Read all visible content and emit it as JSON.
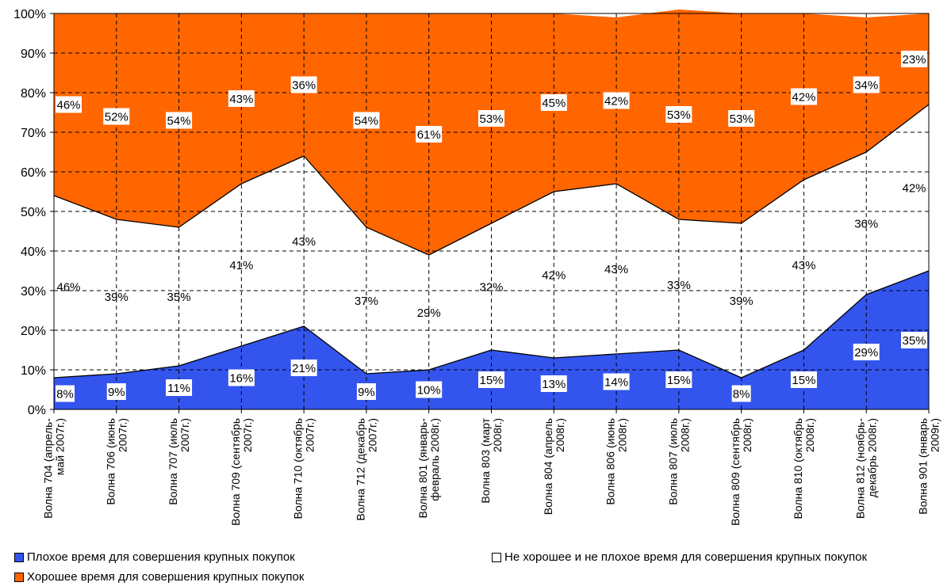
{
  "chart_data": {
    "type": "area",
    "stacked": true,
    "percent_stacked": true,
    "categories": [
      [
        "Волна 704 (апрель-",
        "май 2007г.)"
      ],
      [
        "Волна 706 (июнь",
        "2007г.)"
      ],
      [
        "Волна 707 (июль",
        "2007г.)"
      ],
      [
        "Волна 709 (сентябрь",
        "2007г.)"
      ],
      [
        "Волна 710 (октябрь",
        "2007г.)"
      ],
      [
        "Волна 712 (декабрь",
        "2007г.)"
      ],
      [
        "Волна 801 (январь-",
        "февраль 2008г.)"
      ],
      [
        "Волна 803 (март",
        "2008г.)"
      ],
      [
        "Волна 804 (апрель",
        "2008г.)"
      ],
      [
        "Волна 806 (июнь",
        "2008г.)"
      ],
      [
        "Волна 807 (июль",
        "2008г.)"
      ],
      [
        "Волна 809 (сентябрь",
        "2008г.)"
      ],
      [
        "Волна 810 (октябрь",
        "2008г.)"
      ],
      [
        "Волна 812 (ноябрь-",
        "декабрь 2008г.)"
      ],
      [
        "Волна 901 (январь",
        "2009г.)"
      ]
    ],
    "series": [
      {
        "name": "Плохое время для совершения крупных покупок",
        "color": "#3355ee",
        "values": [
          8,
          9,
          11,
          16,
          21,
          9,
          10,
          15,
          13,
          14,
          15,
          8,
          15,
          29,
          35
        ],
        "labels": [
          "8%",
          "9%",
          "11%",
          "16%",
          "21%",
          "9%",
          "10%",
          "15%",
          "13%",
          "14%",
          "15%",
          "8%",
          "15%",
          "29%",
          "35%"
        ]
      },
      {
        "name": "Не хорошее и не плохое время для совершения крупных покупок",
        "color": "#ffffff",
        "values": [
          46,
          39,
          35,
          41,
          43,
          37,
          29,
          32,
          42,
          43,
          33,
          39,
          43,
          36,
          42
        ],
        "labels": [
          "46%",
          "39%",
          "35%",
          "41%",
          "43%",
          "37%",
          "29%",
          "32%",
          "42%",
          "43%",
          "33%",
          "39%",
          "43%",
          "36%",
          "42%"
        ]
      },
      {
        "name": "Хорошее время для совершения крупных покупок",
        "color": "#ff6600",
        "values": [
          46,
          52,
          54,
          43,
          36,
          54,
          61,
          53,
          45,
          42,
          53,
          53,
          42,
          34,
          23
        ],
        "labels": [
          "46%",
          "52%",
          "54%",
          "43%",
          "36%",
          "54%",
          "61%",
          "53%",
          "45%",
          "42%",
          "53%",
          "53%",
          "42%",
          "34%",
          "23%"
        ]
      }
    ],
    "y_ticks": [
      "0%",
      "10%",
      "20%",
      "30%",
      "40%",
      "50%",
      "60%",
      "70%",
      "80%",
      "90%",
      "100%"
    ],
    "ylim": [
      0,
      100
    ],
    "grid": "dashed",
    "legend_position": "bottom"
  }
}
